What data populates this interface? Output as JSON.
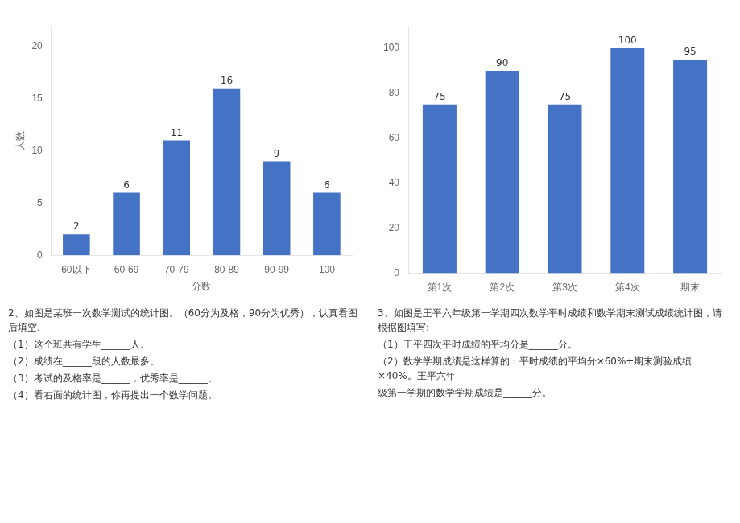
{
  "chart_data": [
    {
      "type": "bar",
      "categories": [
        "60以下",
        "60-69",
        "70-79",
        "80-89",
        "90-99",
        "100"
      ],
      "values": [
        2,
        6,
        11,
        16,
        9,
        6
      ],
      "color": "#4472c4",
      "xlabel": "分数",
      "ylabel": "人数",
      "ylim": [
        0,
        22
      ],
      "yticks": [
        0,
        5,
        10,
        15,
        20
      ],
      "grid": false,
      "data_labels": true,
      "annotations": [
        "2、如图是某班一次数学测试的统计图。（60分为及格，90分为优秀），认真看图后填空.",
        "（1）这个班共有学生______人。",
        "（2）成绩在______段的人数最多。",
        "（3）考试的及格率是______，优秀率是______。",
        "（4）看右面的统计图，你再提出一个数学问题。"
      ]
    },
    {
      "type": "bar",
      "categories": [
        "第1次",
        "第2次",
        "第3次",
        "第4次",
        "期末"
      ],
      "values": [
        75,
        90,
        75,
        100,
        95
      ],
      "color": "#4472c4",
      "ylim": [
        0,
        110
      ],
      "yticks": [
        0,
        20,
        40,
        60,
        80,
        100
      ],
      "grid": false,
      "data_labels": true,
      "annotations": [
        "3、如图是王平六年级第一学期四次数学平时成绩和数学期末测试成绩统计图，请根据图填写:",
        "（1）王平四次平时成绩的平均分是______分。",
        "（2）数学学期成绩是这样算的：平时成绩的平均分×60%+期末测验成绩×40%。王平六年",
        "级第一学期的数学学期成绩是______分。"
      ]
    }
  ]
}
